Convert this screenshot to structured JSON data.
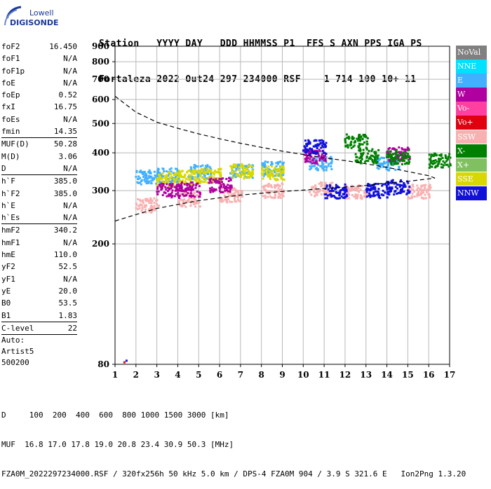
{
  "app": {
    "brand_top": "Lowell",
    "brand_bottom": "DIGISONDE"
  },
  "header": {
    "line1": "Station   YYYY DAY   DDD HHMMSS P1  FFS S AXN PPS IGA PS",
    "line2": "Fortaleza 2022 Out24 297 234000 RSF    1 714 100 10+ 11"
  },
  "params": {
    "groups": [
      [
        {
          "name": "foF2",
          "value": "16.450"
        },
        {
          "name": "foF1",
          "value": "N/A"
        },
        {
          "name": "foF1p",
          "value": "N/A"
        },
        {
          "name": "foE",
          "value": "N/A"
        },
        {
          "name": "foEp",
          "value": "0.52"
        },
        {
          "name": "fxI",
          "value": "16.75"
        },
        {
          "name": "foEs",
          "value": "N/A"
        },
        {
          "name": "fmin",
          "value": "14.35"
        }
      ],
      [
        {
          "name": "MUF(D)",
          "value": "50.28"
        },
        {
          "name": "M(D)",
          "value": "3.06"
        },
        {
          "name": "D",
          "value": "N/A"
        }
      ],
      [
        {
          "name": "h`F",
          "value": "385.0"
        },
        {
          "name": "h`F2",
          "value": "385.0"
        },
        {
          "name": "h`E",
          "value": "N/A"
        },
        {
          "name": "h`Es",
          "value": "N/A"
        }
      ],
      [
        {
          "name": "hmF2",
          "value": "340.2"
        },
        {
          "name": "hmF1",
          "value": "N/A"
        },
        {
          "name": "hmE",
          "value": "110.0"
        },
        {
          "name": "yF2",
          "value": "52.5"
        },
        {
          "name": "yF1",
          "value": "N/A"
        },
        {
          "name": "yE",
          "value": "20.0"
        },
        {
          "name": "B0",
          "value": "53.5"
        },
        {
          "name": "B1",
          "value": "1.83"
        }
      ],
      [
        {
          "name": "C-level",
          "value": "22"
        }
      ]
    ],
    "auto_label": "Auto:",
    "auto_name": "Artist5",
    "auto_version": "500200"
  },
  "legend": [
    {
      "label": "NoVal",
      "color": "#808080"
    },
    {
      "label": "NNE",
      "color": "#00e0ff"
    },
    {
      "label": "E",
      "color": "#40b0ff"
    },
    {
      "label": "W",
      "color": "#b000a0"
    },
    {
      "label": "Vo-",
      "color": "#ff40a0"
    },
    {
      "label": "Vo+",
      "color": "#e00010"
    },
    {
      "label": "SSW",
      "color": "#f8b0b0"
    },
    {
      "label": "X-",
      "color": "#008000"
    },
    {
      "label": "X+",
      "color": "#80c060"
    },
    {
      "label": "SSE",
      "color": "#d8d800"
    },
    {
      "label": "NNW",
      "color": "#1010d8"
    }
  ],
  "chart_data": {
    "type": "scatter",
    "xlabel": "",
    "ylabel": "",
    "xlim": [
      1,
      17
    ],
    "ylim": [
      80,
      900
    ],
    "x_ticks": [
      1,
      2,
      3,
      4,
      5,
      6,
      7,
      8,
      9,
      10,
      11,
      12,
      13,
      14,
      15,
      16,
      17
    ],
    "y_ticks": [
      80,
      200,
      300,
      400,
      500,
      600,
      700,
      800,
      900
    ],
    "grid": true,
    "y_scale": "log",
    "description_series": [
      {
        "name": "SSW",
        "color": "#f8b0b0",
        "clusters": [
          [
            2.5,
            270
          ],
          [
            4.5,
            282
          ],
          [
            6.5,
            292
          ],
          [
            8.5,
            302
          ],
          [
            10.8,
            305
          ],
          [
            12.5,
            300
          ],
          [
            15.5,
            300
          ]
        ]
      },
      {
        "name": "E",
        "color": "#40b0ff",
        "clusters": [
          [
            2.5,
            335
          ],
          [
            3.5,
            340
          ],
          [
            5,
            348
          ],
          [
            7,
            352
          ],
          [
            8.5,
            357
          ],
          [
            10.8,
            372
          ],
          [
            14,
            372
          ]
        ]
      },
      {
        "name": "SSE",
        "color": "#d8d800",
        "clusters": [
          [
            3.5,
            328
          ],
          [
            4.5,
            334
          ],
          [
            5.5,
            338
          ],
          [
            7,
            350
          ],
          [
            8.5,
            345
          ]
        ]
      },
      {
        "name": "W",
        "color": "#b000a0",
        "clusters": [
          [
            3.5,
            302
          ],
          [
            4.5,
            305
          ],
          [
            6,
            315
          ],
          [
            10.5,
            392
          ],
          [
            14.5,
            398
          ]
        ]
      },
      {
        "name": "NNW",
        "color": "#1010d8",
        "clusters": [
          [
            10.5,
            420
          ],
          [
            11.5,
            300
          ],
          [
            13.5,
            302
          ],
          [
            14.5,
            310
          ]
        ]
      },
      {
        "name": "X-",
        "color": "#008000",
        "clusters": [
          [
            12.5,
            440
          ],
          [
            13,
            392
          ],
          [
            14.5,
            390
          ],
          [
            16.5,
            380
          ]
        ]
      }
    ],
    "curves": [
      {
        "name": "",
        "style": "dashed",
        "points": [
          [
            1,
            615
          ],
          [
            2,
            545
          ],
          [
            3,
            505
          ],
          [
            4,
            482
          ],
          [
            5,
            462
          ],
          [
            6,
            445
          ],
          [
            7,
            430
          ],
          [
            8,
            417
          ],
          [
            9,
            405
          ],
          [
            10,
            395
          ],
          [
            11,
            385
          ],
          [
            12,
            377
          ],
          [
            13,
            368
          ],
          [
            14,
            358
          ],
          [
            15,
            347
          ],
          [
            16,
            336
          ],
          [
            16.3,
            330
          ]
        ]
      },
      {
        "name": "",
        "style": "dashed",
        "points": [
          [
            1,
            238
          ],
          [
            2,
            250
          ],
          [
            3,
            262
          ],
          [
            4,
            270
          ],
          [
            5,
            278
          ],
          [
            6,
            284
          ],
          [
            7,
            290
          ],
          [
            8,
            294
          ],
          [
            9,
            298
          ],
          [
            10,
            301
          ],
          [
            11,
            305
          ],
          [
            12,
            308
          ],
          [
            13,
            312
          ],
          [
            14,
            318
          ],
          [
            15,
            322
          ],
          [
            16,
            328
          ],
          [
            16.3,
            330
          ]
        ]
      }
    ],
    "outliers": [
      [
        1.4,
        81,
        "#e00010"
      ],
      [
        1.5,
        82,
        "#1010d8"
      ]
    ]
  },
  "footer": {
    "line1": "D     100  200  400  600  800 1000 1500 3000 [km]",
    "line2": "MUF  16.8 17.0 17.8 19.0 20.8 23.4 30.9 50.3 [MHz]",
    "line3": "FZA0M_2022297234000.RSF / 320fx256h 50 kHz 5.0 km / DPS-4 FZA0M 904 / 3.9 S 321.6 E   Ion2Png 1.3.20"
  }
}
